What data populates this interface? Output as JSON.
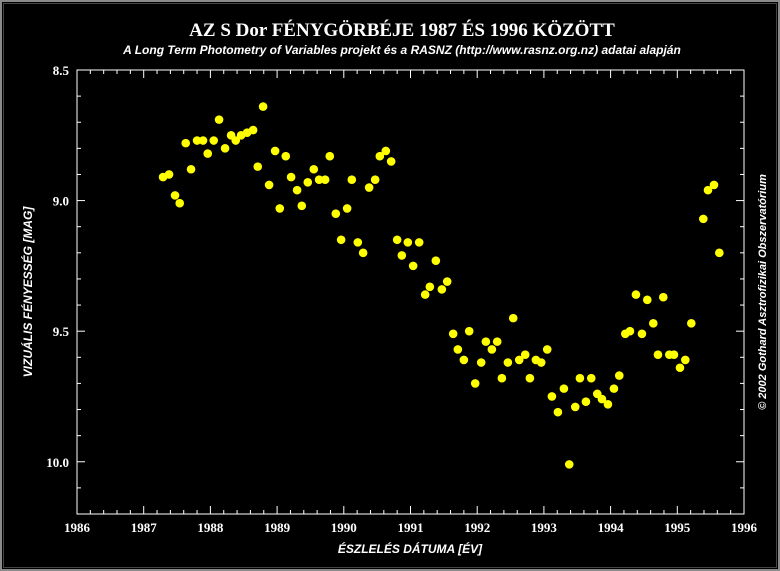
{
  "chart_data": {
    "type": "scatter",
    "title": "AZ S Dor FÉNYGÖRBÉJE 1987 ÉS 1996 KÖZÖTT",
    "subtitle": "A Long Term Photometry of Variables projekt és a RASNZ (http://www.rasnz.org.nz) adatai alapján",
    "xlabel": "ÉSZLELÉS DÁTUMA [ÉV]",
    "ylabel": "VIZUÁLIS FÉNYESSÉG [MAG]",
    "copyright": "© 2002 Gothard Asztrofizikai Obszervatórium",
    "xlim": [
      1986,
      1996
    ],
    "ylim": [
      8.5,
      10.2
    ],
    "y_inverted": true,
    "xticks": [
      "1986",
      "1987",
      "1988",
      "1989",
      "1990",
      "1991",
      "1992",
      "1993",
      "1994",
      "1995",
      "1996"
    ],
    "yticks": [
      "8.5",
      "9.0",
      "9.5",
      "10.0"
    ],
    "marker_color": "#ffff00",
    "grid": false,
    "points": [
      [
        1987.29,
        8.91
      ],
      [
        1987.38,
        8.9
      ],
      [
        1987.47,
        8.98
      ],
      [
        1987.54,
        9.01
      ],
      [
        1987.63,
        8.78
      ],
      [
        1987.71,
        8.88
      ],
      [
        1987.8,
        8.77
      ],
      [
        1987.89,
        8.77
      ],
      [
        1987.96,
        8.82
      ],
      [
        1988.05,
        8.77
      ],
      [
        1988.13,
        8.69
      ],
      [
        1988.22,
        8.8
      ],
      [
        1988.31,
        8.75
      ],
      [
        1988.38,
        8.77
      ],
      [
        1988.46,
        8.75
      ],
      [
        1988.55,
        8.74
      ],
      [
        1988.64,
        8.73
      ],
      [
        1988.71,
        8.87
      ],
      [
        1988.79,
        8.64
      ],
      [
        1988.88,
        8.94
      ],
      [
        1988.97,
        8.81
      ],
      [
        1989.04,
        9.03
      ],
      [
        1989.13,
        8.83
      ],
      [
        1989.21,
        8.91
      ],
      [
        1989.3,
        8.96
      ],
      [
        1989.37,
        9.02
      ],
      [
        1989.46,
        8.93
      ],
      [
        1989.55,
        8.88
      ],
      [
        1989.63,
        8.92
      ],
      [
        1989.72,
        8.92
      ],
      [
        1989.79,
        8.83
      ],
      [
        1989.88,
        9.05
      ],
      [
        1989.96,
        9.15
      ],
      [
        1990.05,
        9.03
      ],
      [
        1990.12,
        8.92
      ],
      [
        1990.21,
        9.16
      ],
      [
        1990.29,
        9.2
      ],
      [
        1990.38,
        8.95
      ],
      [
        1990.47,
        8.92
      ],
      [
        1990.54,
        8.83
      ],
      [
        1990.63,
        8.81
      ],
      [
        1990.71,
        8.85
      ],
      [
        1990.8,
        9.15
      ],
      [
        1990.87,
        9.21
      ],
      [
        1990.96,
        9.16
      ],
      [
        1991.04,
        9.25
      ],
      [
        1991.13,
        9.16
      ],
      [
        1991.22,
        9.36
      ],
      [
        1991.29,
        9.33
      ],
      [
        1991.38,
        9.23
      ],
      [
        1991.47,
        9.34
      ],
      [
        1991.55,
        9.31
      ],
      [
        1991.64,
        9.51
      ],
      [
        1991.71,
        9.57
      ],
      [
        1991.8,
        9.61
      ],
      [
        1991.88,
        9.5
      ],
      [
        1991.97,
        9.7
      ],
      [
        1992.06,
        9.62
      ],
      [
        1992.13,
        9.54
      ],
      [
        1992.22,
        9.57
      ],
      [
        1992.3,
        9.54
      ],
      [
        1992.37,
        9.68
      ],
      [
        1992.46,
        9.62
      ],
      [
        1992.54,
        9.45
      ],
      [
        1992.63,
        9.61
      ],
      [
        1992.72,
        9.59
      ],
      [
        1992.79,
        9.68
      ],
      [
        1992.88,
        9.61
      ],
      [
        1992.96,
        9.62
      ],
      [
        1993.05,
        9.57
      ],
      [
        1993.12,
        9.75
      ],
      [
        1993.21,
        9.81
      ],
      [
        1993.3,
        9.72
      ],
      [
        1993.38,
        10.01
      ],
      [
        1993.47,
        9.79
      ],
      [
        1993.54,
        9.68
      ],
      [
        1993.63,
        9.77
      ],
      [
        1993.71,
        9.68
      ],
      [
        1993.8,
        9.74
      ],
      [
        1993.87,
        9.76
      ],
      [
        1993.96,
        9.78
      ],
      [
        1994.05,
        9.72
      ],
      [
        1994.13,
        9.67
      ],
      [
        1994.22,
        9.51
      ],
      [
        1994.29,
        9.5
      ],
      [
        1994.38,
        9.36
      ],
      [
        1994.47,
        9.51
      ],
      [
        1994.55,
        9.38
      ],
      [
        1994.64,
        9.47
      ],
      [
        1994.71,
        9.59
      ],
      [
        1994.79,
        9.37
      ],
      [
        1994.88,
        9.59
      ],
      [
        1994.95,
        9.59
      ],
      [
        1995.04,
        9.64
      ],
      [
        1995.12,
        9.61
      ],
      [
        1995.21,
        9.47
      ],
      [
        1995.39,
        9.07
      ],
      [
        1995.46,
        8.96
      ],
      [
        1995.55,
        8.94
      ],
      [
        1995.63,
        9.2
      ]
    ]
  }
}
